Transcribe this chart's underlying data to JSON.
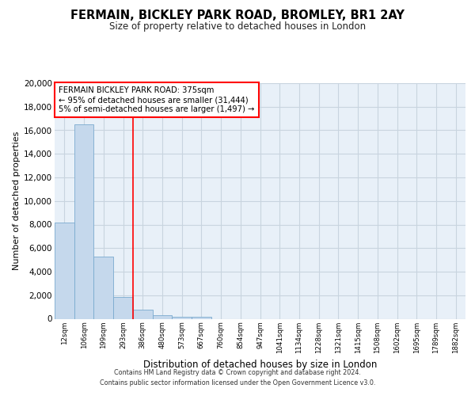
{
  "title": "FERMAIN, BICKLEY PARK ROAD, BROMLEY, BR1 2AY",
  "subtitle": "Size of property relative to detached houses in London",
  "xlabel": "Distribution of detached houses by size in London",
  "ylabel": "Number of detached properties",
  "bar_values": [
    8200,
    16500,
    5300,
    1850,
    750,
    280,
    200,
    150,
    0,
    0,
    0,
    0,
    0,
    0,
    0,
    0,
    0,
    0,
    0,
    0,
    0
  ],
  "bar_labels": [
    "12sqm",
    "106sqm",
    "199sqm",
    "293sqm",
    "386sqm",
    "480sqm",
    "573sqm",
    "667sqm",
    "760sqm",
    "854sqm",
    "947sqm",
    "1041sqm",
    "1134sqm",
    "1228sqm",
    "1321sqm",
    "1415sqm",
    "1508sqm",
    "1602sqm",
    "1695sqm",
    "1789sqm",
    "1882sqm"
  ],
  "bar_color": "#c5d8ec",
  "bar_edge_color": "#7aaacf",
  "red_line_index": 4,
  "annotation_box_text": "FERMAIN BICKLEY PARK ROAD: 375sqm\n← 95% of detached houses are smaller (31,444)\n5% of semi-detached houses are larger (1,497) →",
  "ylim": [
    0,
    20000
  ],
  "yticks": [
    0,
    2000,
    4000,
    6000,
    8000,
    10000,
    12000,
    14000,
    16000,
    18000,
    20000
  ],
  "footer_line1": "Contains HM Land Registry data © Crown copyright and database right 2024.",
  "footer_line2": "Contains public sector information licensed under the Open Government Licence v3.0.",
  "background_color": "#ffffff",
  "grid_color": "#c8d4df",
  "plot_bg_color": "#e8f0f8"
}
